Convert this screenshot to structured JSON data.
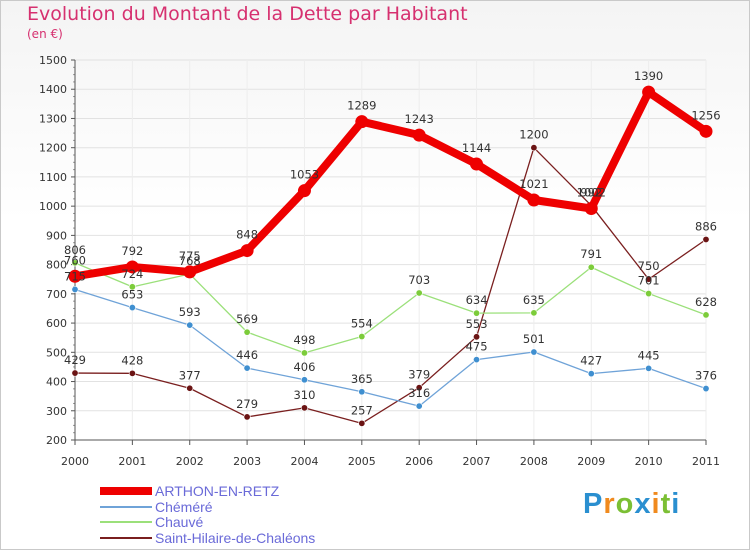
{
  "header": {
    "title": "Evolution du Montant de la Dette par Habitant",
    "unit": "(en €)"
  },
  "logo": {
    "text": "Proxiti",
    "letters": [
      "P",
      "r",
      "o",
      "x",
      "i",
      "t",
      "i"
    ],
    "colors": [
      "#2a8fd0",
      "#f08a1e",
      "#7bbf34",
      "#2a8fd0",
      "#f08a1e",
      "#7bbf34",
      "#2a8fd0"
    ]
  },
  "chart_data": {
    "type": "line",
    "title": "Evolution du Montant de la Dette par Habitant",
    "ylabel": "(en €)",
    "xlabel": "",
    "x": [
      "2000",
      "2001",
      "2002",
      "2003",
      "2004",
      "2005",
      "2006",
      "2007",
      "2008",
      "2009",
      "2010",
      "2011"
    ],
    "ylim": [
      200,
      1500
    ],
    "yticks": [
      200,
      300,
      400,
      500,
      600,
      700,
      800,
      900,
      1000,
      1100,
      1200,
      1300,
      1400,
      1500
    ],
    "grid": true,
    "legend_position": "bottom-left",
    "series": [
      {
        "name": "Saint-Hilaire-de-Chaléons",
        "color": "#7a1f1f",
        "marker": "#6b1414",
        "width": 1.3,
        "values": [
          429,
          428,
          377,
          279,
          310,
          257,
          379,
          553,
          1200,
          1002,
          750,
          886
        ],
        "labels": [
          "429",
          "428",
          "377",
          "279",
          "310",
          "257",
          "379",
          "553",
          "1200",
          "1002",
          "750",
          "886"
        ]
      },
      {
        "name": "Chauvé",
        "color": "#9be07a",
        "marker": "#7ccc3a",
        "width": 1.3,
        "values": [
          806,
          724,
          768,
          569,
          498,
          554,
          703,
          634,
          635,
          791,
          701,
          628
        ],
        "labels": [
          "806",
          "724",
          "768",
          "569",
          "498",
          "554",
          "703",
          "634",
          "635",
          "791",
          "701",
          "628"
        ]
      },
      {
        "name": "Chéméré",
        "color": "#6fa3d8",
        "marker": "#3f8fd0",
        "width": 1.3,
        "values": [
          715,
          653,
          593,
          446,
          406,
          365,
          316,
          475,
          501,
          427,
          445,
          376
        ],
        "labels": [
          "715",
          "653",
          "593",
          "446",
          "406",
          "365",
          "316",
          "475",
          "501",
          "427",
          "445",
          "376"
        ]
      },
      {
        "name": "ARTHON-EN-RETZ",
        "color": "#ee0000",
        "marker": "#ee0000",
        "width": 8,
        "values": [
          760,
          792,
          775,
          848,
          1053,
          1289,
          1243,
          1144,
          1021,
          992,
          1390,
          1256
        ],
        "labels": [
          "760",
          "792",
          "775",
          "848",
          "1053",
          "1289",
          "1243",
          "1144",
          "1021",
          "992",
          "1390",
          "1256"
        ]
      }
    ]
  },
  "legend": {
    "items": [
      {
        "label": "ARTHON-EN-RETZ",
        "color": "#ee0000",
        "thickness": 8
      },
      {
        "label": "Chéméré",
        "color": "#6fa3d8",
        "thickness": 2
      },
      {
        "label": "Chauvé",
        "color": "#9be07a",
        "thickness": 2
      },
      {
        "label": "Saint-Hilaire-de-Chaléons",
        "color": "#7a1f1f",
        "thickness": 2
      }
    ]
  }
}
